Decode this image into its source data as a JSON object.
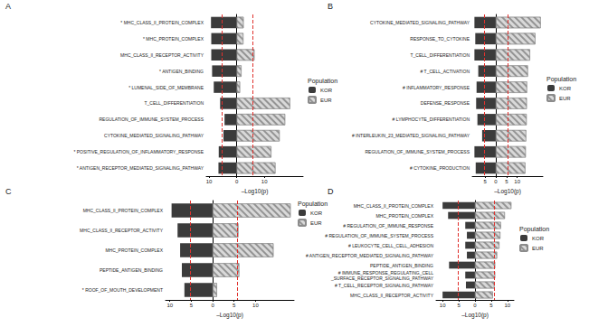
{
  "chart_data": [
    {
      "type": "bar",
      "title": "A",
      "orientation": "horizontal",
      "grid": false,
      "legend": "right",
      "legend_title": "Population",
      "xlabel": "–Log10(p)",
      "categories": [
        "* MHC_CLASS_II_PROTEIN_COMPLEX",
        "* MHC_PROTEIN_COMPLEX",
        "MHC_CLASS_II_RECEPTOR_ACTIVITY",
        "* ANTIGEN_BINDING",
        "* LUMENAL_SIDE_OF_MEMBRANE",
        "T_CELL_DIFFERENTIATION",
        "REGULATION_OF_IMMUNE_SYSTEM_PROCESS",
        "CYTOKINE_MEDIATED_SIGNALING_PATHWAY",
        "* POSITIVE_REGULATION_OF_INFLAMMATORY_RESPONSE",
        "* ANTIGEN_RECEPTOR_MEDIATED_SIGNALING_PATHWAY"
      ],
      "series": [
        {
          "name": "KOR",
          "color": "#3b3b3b",
          "values": [
            9.3,
            9.2,
            9.2,
            8.9,
            8.3,
            6.0,
            4.4,
            4.8,
            6.5,
            6.6
          ],
          "xlim": [
            0,
            11
          ],
          "xticks": [
            10
          ],
          "reference_line": 5.2
        },
        {
          "name": "EUR",
          "color": "#d9d9d9",
          "values": [
            2.5,
            2.4,
            6.4,
            1.7,
            1.2,
            19.3,
            17.5,
            15.5,
            12.5,
            14.0
          ],
          "xlim": [
            0,
            24
          ],
          "xticks": [
            0,
            10
          ],
          "reference_line": 5.8
        }
      ]
    },
    {
      "type": "bar",
      "title": "B",
      "orientation": "horizontal",
      "grid": false,
      "legend": "right",
      "legend_title": "Population",
      "xlabel": "–Log10(p)",
      "categories": [
        "CYTOKINE_MEDIATED_SIGNALING_PATHWAY",
        "RESPONSE_TO_CYTOKINE",
        "T_CELL_DIFFERENTIATION",
        "# T_CELL_ACTIVATION",
        "# INFLAMMATORY_RESPONSE",
        "DEFENSE_RESPONSE",
        "# LYMPHOCYTE_DIFFERENTIATION",
        "# INTERLEUKIN_23_MEDIATED_SIGNALING_PATHWAY",
        "REGULATION_OF_IMMUNE_SYSTEM_PROCESS",
        "# CYTOKINE_PRODUCTION"
      ],
      "series": [
        {
          "name": "KOR",
          "color": "#3b3b3b",
          "values": [
            10.0,
            9.6,
            10.0,
            8.2,
            9.0,
            9.2,
            8.6,
            6.4,
            10.0,
            9.4
          ],
          "xlim": [
            0,
            11
          ],
          "xticks": [
            5
          ],
          "reference_line": 5.2
        },
        {
          "name": "EUR",
          "color": "#d9d9d9",
          "values": [
            21.0,
            18.5,
            16.0,
            15.0,
            14.6,
            14.5,
            14.4,
            14.2,
            14.0,
            13.8
          ],
          "xlim": [
            0,
            22
          ],
          "xticks": [
            0,
            5,
            10
          ],
          "reference_line": 5.8
        }
      ]
    },
    {
      "type": "bar",
      "title": "C",
      "orientation": "horizontal",
      "grid": false,
      "legend": "right",
      "legend_title": "Population",
      "xlabel": "–Log10(p)",
      "categories": [
        "MHC_CLASS_II_PROTEIN_COMPLEX",
        "MHC_CLASS_II_RECEPTOR_ACTIVITY",
        "MHC_PROTEIN_COMPLEX",
        "PEPTIDE_ANTIGEN_BINDING",
        "* ROOF_OF_MOUTH_DEVELOPMENT"
      ],
      "series": [
        {
          "name": "KOR",
          "color": "#3b3b3b",
          "values": [
            9.6,
            8.2,
            7.6,
            7.2,
            6.6
          ],
          "xlim": [
            0,
            11
          ],
          "xticks": [
            10,
            5
          ],
          "reference_line": 5.2
        },
        {
          "name": "EUR",
          "color": "#d9d9d9",
          "values": [
            18.2,
            6.0,
            14.2,
            6.2,
            1.0
          ],
          "xlim": [
            0,
            19
          ],
          "xticks": [
            0,
            5,
            10
          ],
          "reference_line": 5.8
        }
      ]
    },
    {
      "type": "bar",
      "title": "D",
      "orientation": "horizontal",
      "grid": false,
      "legend": "right",
      "legend_title": "Population",
      "xlabel": "–Log10(p)",
      "categories": [
        "MHC_CLASS_II_PROTEIN_COMPLEX",
        "MHC_PROTEIN_COMPLEX",
        "# REGULATION_OF_IMMUNE_RESPONSE",
        "# REGULATION_OF_IMMUNE_SYSTEM_PROCESS",
        "# LEUKOCYTE_CELL_CELL_ADHESION",
        "# ANTIGEN_RECEPTOR_MEDIATED_SIGNALING_PATHWAY",
        "PEPTIDE_ANTIGEN_BINDING",
        "# IMMUNE_RESPONSE_REGULATING_CELL\n_SURFACE_RECEPTOR_SIGNALING_PATHWAY",
        "# T_CELL_RECEPTOR_SIGNALING_PATHWAY",
        "MHC_CLASS_II_RECEPTOR_ACTIVITY"
      ],
      "series": [
        {
          "name": "KOR",
          "color": "#3b3b3b",
          "values": [
            10.0,
            8.3,
            3.0,
            2.5,
            3.0,
            2.5,
            8.0,
            3.0,
            2.8,
            10.0
          ],
          "xlim": [
            0,
            12
          ],
          "xticks": [
            10,
            5
          ],
          "reference_line": 5.2
        },
        {
          "name": "EUR",
          "color": "#d9d9d9",
          "values": [
            11.2,
            9.2,
            8.0,
            7.8,
            7.5,
            6.8,
            6.2,
            6.2,
            6.0,
            5.5
          ],
          "xlim": [
            0,
            12
          ],
          "xticks": [
            0,
            5,
            10
          ],
          "reference_line": 5.8
        }
      ]
    }
  ]
}
